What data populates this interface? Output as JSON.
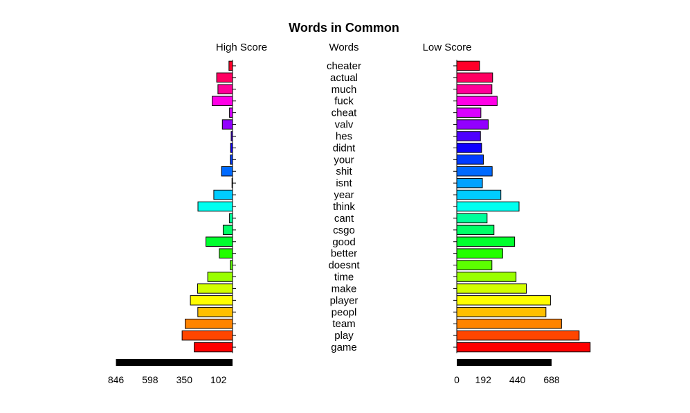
{
  "chart_data": {
    "type": "bar",
    "title": "Words in Common",
    "left_label": "High Score",
    "center_label": "Words",
    "right_label": "Low Score",
    "categories": [
      "cheater",
      "actual",
      "much",
      "fuck",
      "cheat",
      "valv",
      "hes",
      "didnt",
      "your",
      "shit",
      "isnt",
      "year",
      "think",
      "cant",
      "csgo",
      "good",
      "better",
      "doesnt",
      "time",
      "make",
      "player",
      "peopl",
      "team",
      "play",
      "game"
    ],
    "series": [
      {
        "name": "High Score",
        "values": [
          26,
          115,
          106,
          148,
          22,
          74,
          10,
          14,
          16,
          80,
          4,
          136,
          251,
          22,
          68,
          193,
          96,
          16,
          180,
          254,
          306,
          252,
          344,
          366,
          278
        ]
      },
      {
        "name": "Low Score",
        "values": [
          165,
          260,
          255,
          293,
          175,
          228,
          172,
          180,
          193,
          257,
          186,
          320,
          452,
          220,
          270,
          420,
          333,
          255,
          430,
          505,
          680,
          647,
          760,
          888,
          968
        ]
      }
    ],
    "left_axis": {
      "ticks": [
        846,
        598,
        350,
        102
      ],
      "max": 846
    },
    "right_axis": {
      "ticks": [
        0,
        192,
        440,
        688
      ],
      "max": 688
    },
    "colors": [
      "#ff0029",
      "#ff0062",
      "#ff0099",
      "#ff00e6",
      "#d900ff",
      "#9200ff",
      "#4e00ff",
      "#0f00ff",
      "#003cff",
      "#006aff",
      "#00a2ff",
      "#00ccff",
      "#00fff0",
      "#00ff9b",
      "#00ff67",
      "#00ff2e",
      "#22ff00",
      "#5cff00",
      "#99ff00",
      "#d2ff00",
      "#fffd00",
      "#ffbf00",
      "#ff8400",
      "#ff4600",
      "#ff0000"
    ],
    "legend": "none",
    "grid": false
  }
}
